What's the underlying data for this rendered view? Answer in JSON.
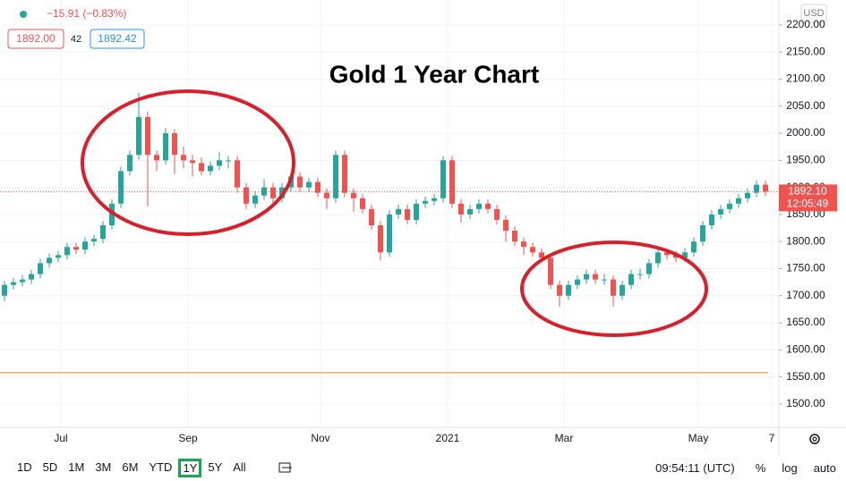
{
  "chart_data": {
    "type": "candlestick",
    "title": "Gold 1 Year Chart",
    "change": "−15.91 (−0.83%)",
    "bid": "1892.00",
    "spread": "42",
    "ask": "1892.42",
    "currency": "USD",
    "up_color": "#26a69a",
    "down_color": "#ef5350",
    "ohlc": [
      [
        1700,
        1728,
        1690,
        1720
      ],
      [
        1720,
        1733,
        1712,
        1725
      ],
      [
        1725,
        1738,
        1717,
        1730
      ],
      [
        1730,
        1748,
        1722,
        1740
      ],
      [
        1740,
        1768,
        1732,
        1760
      ],
      [
        1760,
        1778,
        1752,
        1770
      ],
      [
        1770,
        1783,
        1762,
        1775
      ],
      [
        1775,
        1798,
        1767,
        1790
      ],
      [
        1790,
        1798,
        1777,
        1785
      ],
      [
        1785,
        1808,
        1777,
        1800
      ],
      [
        1800,
        1813,
        1792,
        1805
      ],
      [
        1805,
        1838,
        1797,
        1830
      ],
      [
        1830,
        1878,
        1822,
        1870
      ],
      [
        1870,
        1938,
        1862,
        1930
      ],
      [
        1930,
        1968,
        1922,
        1960
      ],
      [
        1960,
        2075,
        1952,
        2030
      ],
      [
        2030,
        2040,
        1865,
        1960
      ],
      [
        1960,
        1968,
        1930,
        1950
      ],
      [
        1950,
        2010,
        1942,
        2000
      ],
      [
        2000,
        2008,
        1925,
        1960
      ],
      [
        1960,
        1975,
        1935,
        1950
      ],
      [
        1950,
        1960,
        1920,
        1945
      ],
      [
        1945,
        1955,
        1922,
        1930
      ],
      [
        1930,
        1948,
        1922,
        1940
      ],
      [
        1940,
        1965,
        1932,
        1950
      ],
      [
        1950,
        1958,
        1935,
        1950
      ],
      [
        1950,
        1958,
        1890,
        1900
      ],
      [
        1900,
        1908,
        1860,
        1870
      ],
      [
        1870,
        1893,
        1862,
        1885
      ],
      [
        1885,
        1915,
        1877,
        1900
      ],
      [
        1900,
        1908,
        1872,
        1880
      ],
      [
        1880,
        1908,
        1872,
        1900
      ],
      [
        1900,
        1928,
        1892,
        1920
      ],
      [
        1920,
        1928,
        1892,
        1900
      ],
      [
        1900,
        1918,
        1892,
        1910
      ],
      [
        1910,
        1918,
        1882,
        1890
      ],
      [
        1890,
        1898,
        1860,
        1880
      ],
      [
        1880,
        1968,
        1872,
        1960
      ],
      [
        1960,
        1968,
        1882,
        1890
      ],
      [
        1890,
        1898,
        1855,
        1880
      ],
      [
        1880,
        1888,
        1852,
        1860
      ],
      [
        1860,
        1868,
        1822,
        1830
      ],
      [
        1830,
        1838,
        1765,
        1780
      ],
      [
        1780,
        1858,
        1772,
        1850
      ],
      [
        1850,
        1868,
        1842,
        1860
      ],
      [
        1860,
        1868,
        1832,
        1840
      ],
      [
        1840,
        1878,
        1832,
        1870
      ],
      [
        1870,
        1883,
        1862,
        1875
      ],
      [
        1875,
        1888,
        1867,
        1880
      ],
      [
        1880,
        1958,
        1872,
        1950
      ],
      [
        1950,
        1958,
        1862,
        1870
      ],
      [
        1870,
        1878,
        1835,
        1850
      ],
      [
        1850,
        1868,
        1842,
        1860
      ],
      [
        1860,
        1878,
        1852,
        1870
      ],
      [
        1870,
        1878,
        1852,
        1860
      ],
      [
        1860,
        1868,
        1832,
        1840
      ],
      [
        1840,
        1848,
        1800,
        1820
      ],
      [
        1820,
        1828,
        1792,
        1800
      ],
      [
        1800,
        1808,
        1775,
        1790
      ],
      [
        1790,
        1798,
        1772,
        1780
      ],
      [
        1780,
        1788,
        1762,
        1770
      ],
      [
        1770,
        1778,
        1712,
        1720
      ],
      [
        1720,
        1728,
        1680,
        1700
      ],
      [
        1700,
        1728,
        1692,
        1720
      ],
      [
        1720,
        1738,
        1712,
        1730
      ],
      [
        1730,
        1748,
        1722,
        1740
      ],
      [
        1740,
        1748,
        1722,
        1730
      ],
      [
        1730,
        1740,
        1720,
        1730
      ],
      [
        1730,
        1738,
        1680,
        1700
      ],
      [
        1700,
        1728,
        1692,
        1720
      ],
      [
        1720,
        1748,
        1712,
        1740
      ],
      [
        1740,
        1750,
        1730,
        1740
      ],
      [
        1740,
        1768,
        1732,
        1760
      ],
      [
        1760,
        1788,
        1752,
        1780
      ],
      [
        1780,
        1788,
        1767,
        1775
      ],
      [
        1775,
        1783,
        1762,
        1770
      ],
      [
        1770,
        1788,
        1762,
        1780
      ],
      [
        1780,
        1808,
        1772,
        1800
      ],
      [
        1800,
        1838,
        1792,
        1830
      ],
      [
        1830,
        1858,
        1822,
        1850
      ],
      [
        1850,
        1868,
        1842,
        1860
      ],
      [
        1860,
        1878,
        1852,
        1870
      ],
      [
        1870,
        1888,
        1862,
        1880
      ],
      [
        1880,
        1898,
        1872,
        1890
      ],
      [
        1890,
        1913,
        1882,
        1905
      ],
      [
        1905,
        1913,
        1884,
        1892
      ]
    ],
    "xlim": [
      0,
      87
    ],
    "xticks": [
      {
        "value": 6.8,
        "label": "Jul"
      },
      {
        "value": 21,
        "label": "Sep"
      },
      {
        "value": 35.8,
        "label": "Nov"
      },
      {
        "value": 50,
        "label": "2021"
      },
      {
        "value": 63,
        "label": "Mar"
      },
      {
        "value": 78,
        "label": "May"
      },
      {
        "value": 86.2,
        "label": "7"
      }
    ],
    "ylim": [
      1457,
      2246
    ],
    "yticks": [
      {
        "value": 1500,
        "label": "1500.00"
      },
      {
        "value": 1550,
        "label": "1550.00"
      },
      {
        "value": 1600,
        "label": "1600.00"
      },
      {
        "value": 1650,
        "label": "1650.00"
      },
      {
        "value": 1700,
        "label": "1700.00"
      },
      {
        "value": 1750,
        "label": "1750.00"
      },
      {
        "value": 1800,
        "label": "1800.00"
      },
      {
        "value": 1850,
        "label": "1850.00"
      },
      {
        "value": 1900,
        "label": "1900.00"
      },
      {
        "value": 1950,
        "label": "1950.00"
      },
      {
        "value": 2000,
        "label": "2000.00"
      },
      {
        "value": 2050,
        "label": "2050.00"
      },
      {
        "value": 2100,
        "label": "2100.00"
      },
      {
        "value": 2150,
        "label": "2150.00"
      },
      {
        "value": 2200,
        "label": "2200.00"
      }
    ],
    "grid": true,
    "hline": {
      "value": 1558,
      "color": "#f5a96b"
    },
    "last_price": {
      "value": 1892.1,
      "label": "1892.10"
    },
    "countdown": "12:05:49"
  },
  "toolbar": {
    "ranges": [
      "1D",
      "5D",
      "1M",
      "3M",
      "6M",
      "YTD",
      "1Y",
      "5Y",
      "All"
    ],
    "active": 6,
    "time": "09:54:11 (UTC)",
    "options": [
      "%",
      "log",
      "auto"
    ]
  }
}
